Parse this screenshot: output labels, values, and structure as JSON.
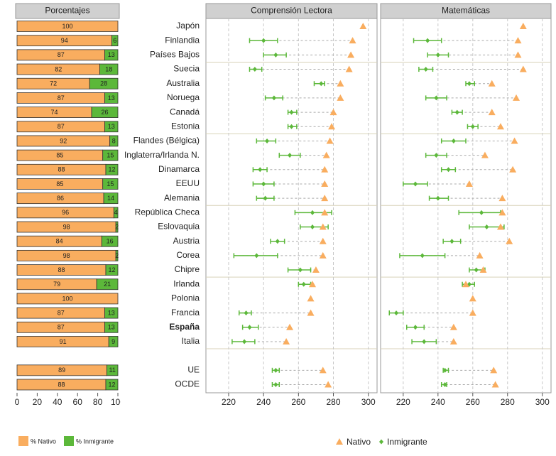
{
  "chart_data": {
    "type": "panels",
    "categories": [
      "Japón",
      "Finlandia",
      "Países Bajos",
      "Suecia",
      "Australia",
      "Noruega",
      "Canadá",
      "Estonia",
      "Flandes (Bélgica)",
      "Inglaterra/Irlanda N.",
      "Dinamarca",
      "EEUU",
      "Alemania",
      "República Checa",
      "Eslovaquia",
      "Austria",
      "Corea",
      "Chipre",
      "Irlanda",
      "Polonia",
      "Francia",
      "España",
      "Italia",
      null,
      "UE",
      "OCDE"
    ],
    "percent": {
      "title": "Porcentajes",
      "xlim": [
        0,
        100
      ],
      "xticks": [
        0,
        20,
        40,
        60,
        80,
        100
      ],
      "series": [
        {
          "name": "% Nativo",
          "color": "#f9ad5f",
          "values": [
            100,
            94,
            87,
            82,
            72,
            87,
            74,
            87,
            92,
            85,
            88,
            85,
            86,
            96,
            98,
            84,
            98,
            88,
            79,
            100,
            87,
            87,
            91,
            null,
            89,
            88
          ]
        },
        {
          "name": "% Inmigrante",
          "color": "#5cb83a",
          "values": [
            null,
            6,
            13,
            18,
            28,
            13,
            26,
            13,
            8,
            15,
            12,
            15,
            14,
            4,
            2,
            16,
            2,
            12,
            21,
            null,
            13,
            13,
            9,
            null,
            11,
            12
          ]
        }
      ]
    },
    "point_series": [
      {
        "name": "Nativo",
        "color": "#f9ad5f"
      },
      {
        "name": "Inmigrante",
        "color": "#5cb83a"
      }
    ],
    "panels": [
      {
        "title": "Comprensión Lectora",
        "xlim": [
          207,
          305
        ],
        "xticks": [
          220,
          240,
          260,
          280,
          300
        ],
        "native": [
          297,
          291,
          290,
          289,
          284,
          284,
          280,
          279,
          278,
          276,
          275,
          275,
          275,
          275,
          274,
          274,
          274,
          270,
          268,
          267,
          267,
          255,
          253,
          null,
          274,
          277
        ],
        "immigrant": [
          null,
          240,
          247,
          235,
          273,
          246,
          256,
          256,
          242,
          255,
          238,
          240,
          241,
          268,
          268,
          248,
          236,
          261,
          263,
          null,
          230,
          232,
          229,
          null,
          247,
          247
        ],
        "low": [
          null,
          232,
          240,
          232,
          269,
          241,
          254,
          254,
          236,
          249,
          234,
          234,
          236,
          258,
          261,
          244,
          223,
          254,
          260,
          null,
          226,
          228,
          222,
          null,
          245,
          245
        ],
        "high": [
          null,
          248,
          253,
          239,
          275,
          251,
          259,
          259,
          247,
          261,
          242,
          246,
          246,
          279,
          277,
          252,
          248,
          267,
          267,
          null,
          233,
          237,
          235,
          null,
          249,
          249
        ]
      },
      {
        "title": "Matemáticas",
        "xlim": [
          207,
          305
        ],
        "xticks": [
          220,
          240,
          260,
          280,
          300
        ],
        "native": [
          289,
          286,
          286,
          289,
          271,
          285,
          271,
          276,
          284,
          267,
          283,
          258,
          277,
          277,
          276,
          281,
          264,
          266,
          256,
          260,
          260,
          249,
          249,
          null,
          272,
          273
        ],
        "immigrant": [
          null,
          234,
          240,
          233,
          258,
          239,
          251,
          260,
          249,
          239,
          246,
          227,
          240,
          265,
          268,
          248,
          231,
          262,
          258,
          null,
          216,
          227,
          232,
          null,
          244,
          244
        ],
        "low": [
          null,
          226,
          234,
          229,
          256,
          233,
          248,
          257,
          242,
          233,
          242,
          220,
          235,
          252,
          258,
          243,
          218,
          258,
          254,
          null,
          212,
          222,
          225,
          null,
          243,
          242
        ],
        "high": [
          null,
          242,
          246,
          237,
          261,
          245,
          254,
          263,
          256,
          245,
          250,
          234,
          246,
          276,
          278,
          253,
          244,
          267,
          261,
          null,
          220,
          232,
          239,
          null,
          246,
          245
        ]
      }
    ]
  }
}
